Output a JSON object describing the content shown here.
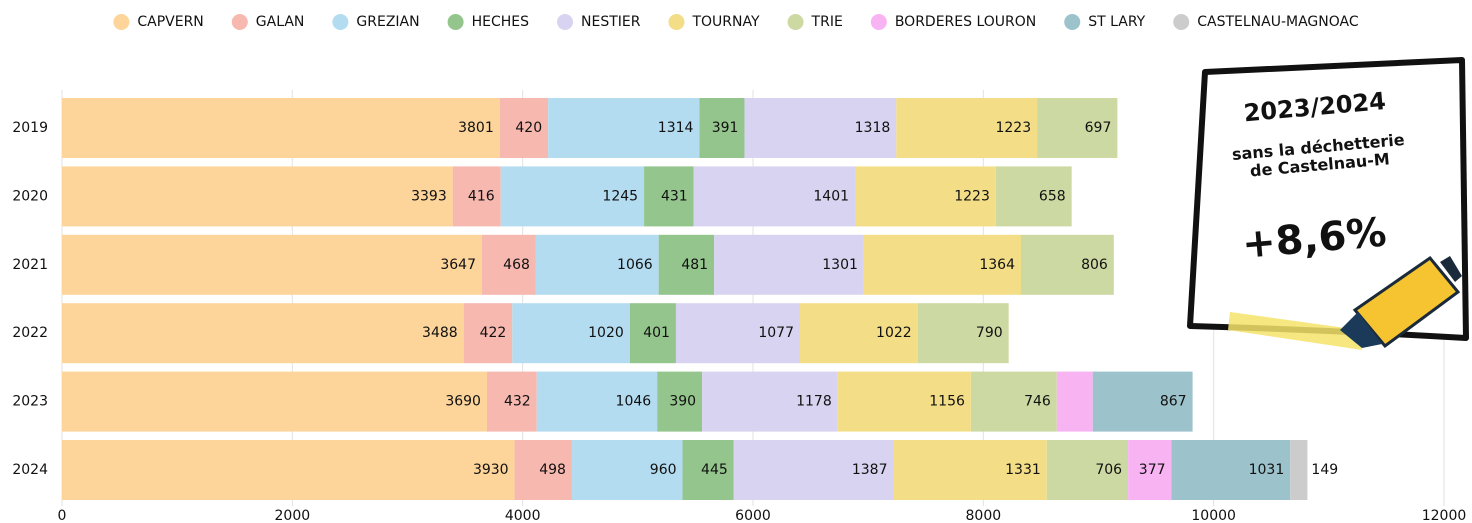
{
  "chart_data": {
    "type": "bar",
    "orientation": "horizontal",
    "stacked": true,
    "categories": [
      "2019",
      "2020",
      "2021",
      "2022",
      "2023",
      "2024"
    ],
    "series": [
      {
        "name": "CAPVERN",
        "color": "#fdd49a",
        "values": [
          3801,
          3393,
          3647,
          3488,
          3690,
          3930
        ]
      },
      {
        "name": "GALAN",
        "color": "#f7b8b0",
        "values": [
          420,
          416,
          468,
          422,
          432,
          498
        ]
      },
      {
        "name": "GREZIAN",
        "color": "#b3dcf1",
        "values": [
          1314,
          1245,
          1066,
          1020,
          1046,
          960
        ]
      },
      {
        "name": "HECHES",
        "color": "#94c58c",
        "values": [
          391,
          431,
          481,
          401,
          390,
          445
        ]
      },
      {
        "name": "NESTIER",
        "color": "#d8d3f0",
        "values": [
          1318,
          1401,
          1301,
          1077,
          1178,
          1387
        ]
      },
      {
        "name": "TOURNAY",
        "color": "#f3de87",
        "values": [
          1223,
          1223,
          1364,
          1022,
          1156,
          1331
        ]
      },
      {
        "name": "TRIE",
        "color": "#cdd9a2",
        "values": [
          697,
          658,
          806,
          790,
          746,
          706
        ]
      },
      {
        "name": "BORDERES LOURON",
        "color": "#f8b3f3",
        "values": [
          null,
          null,
          null,
          null,
          312,
          377
        ]
      },
      {
        "name": "ST LARY",
        "color": "#9cc2cb",
        "values": [
          null,
          null,
          null,
          null,
          867,
          1031
        ]
      },
      {
        "name": "CASTELNAU-MAGNOAC",
        "color": "#cccccc",
        "values": [
          null,
          null,
          null,
          null,
          null,
          149
        ]
      }
    ],
    "xlim": [
      0,
      12000
    ],
    "xticks": [
      0,
      2000,
      4000,
      6000,
      8000,
      10000,
      12000
    ],
    "grid": true,
    "annotation": {
      "title": "2023/2024",
      "line1": "sans la déchetterie",
      "line2": "de Castelnau-M",
      "value": "+8,6%"
    }
  }
}
